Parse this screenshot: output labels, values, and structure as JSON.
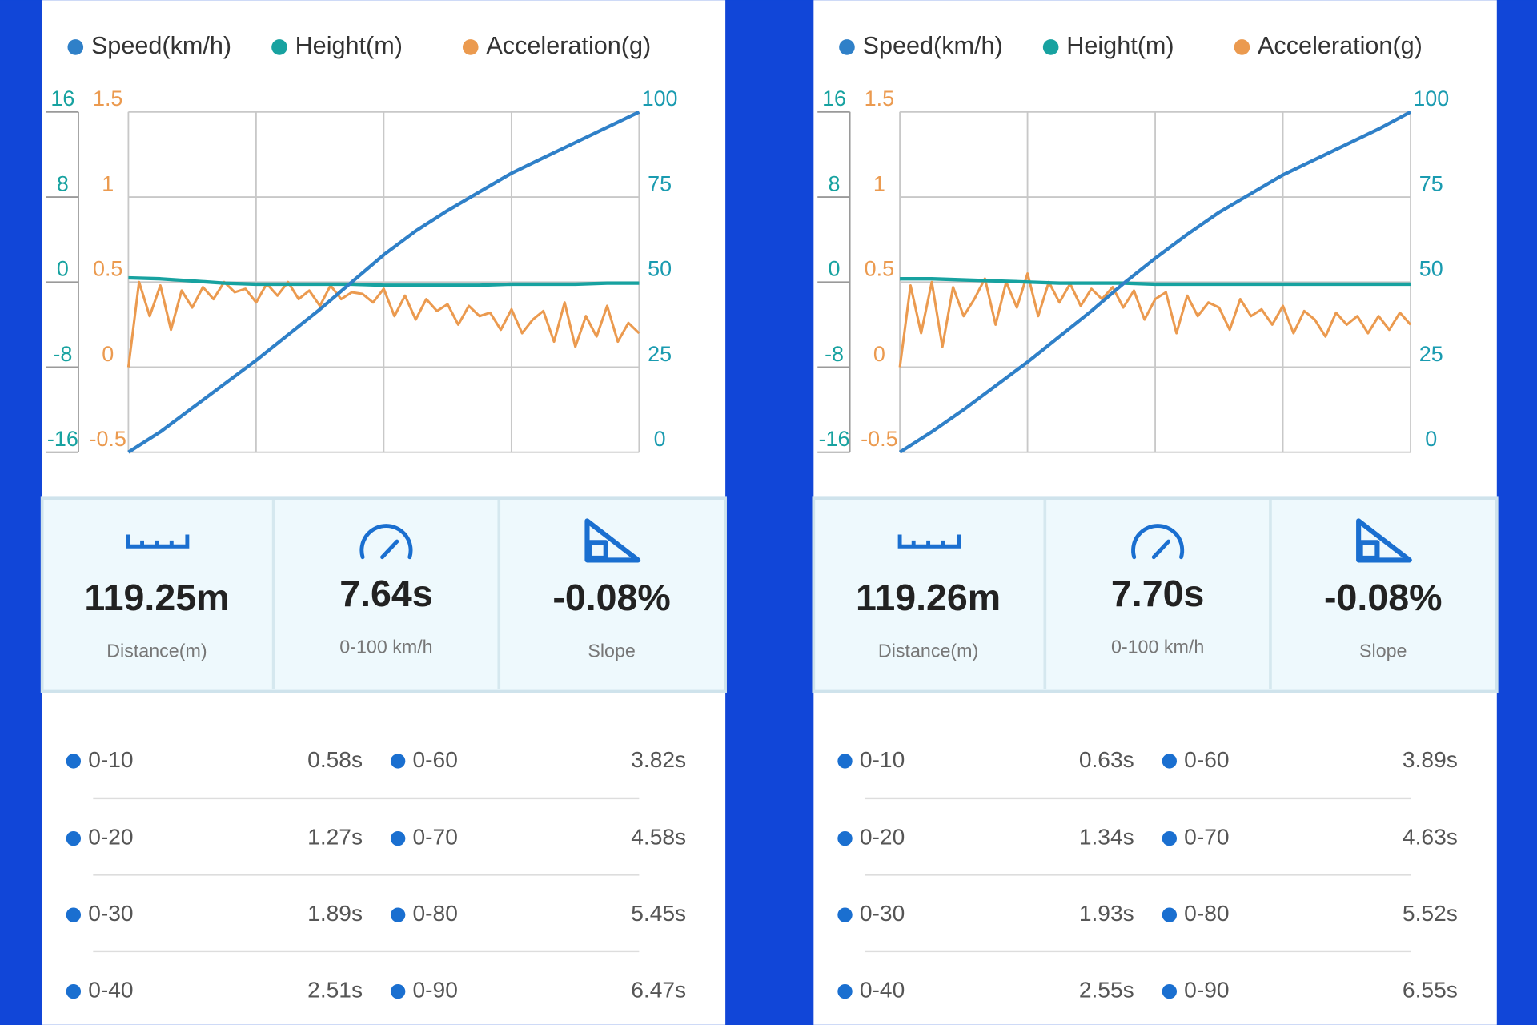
{
  "panels": [
    {
      "chart": {
        "type": "line",
        "ylim": [
          -16,
          16
        ],
        "yticks": [
          16,
          8,
          0,
          -8,
          -16
        ],
        "y3lim": [
          -0.5,
          1.5
        ],
        "y3ticks": [
          1.5,
          1,
          0.5,
          0,
          -0.5
        ],
        "y2lim": [
          0,
          100
        ],
        "y2ticks": [
          100,
          75,
          50,
          25,
          0
        ],
        "grid": true,
        "series": [
          {
            "name": "Speed(km/h)",
            "color": "#2f80c8",
            "axis": "y2",
            "values": [
              0,
              6,
              13,
              20,
              27,
              34.5,
              42,
              50,
              58,
              65,
              71,
              76.5,
              82,
              86.5,
              91,
              95.5,
              100
            ]
          },
          {
            "name": "Height(m)",
            "color": "#17a2a0",
            "axis": "y",
            "values": [
              0.4,
              0.3,
              0.1,
              -0.1,
              -0.2,
              -0.2,
              -0.2,
              -0.2,
              -0.3,
              -0.3,
              -0.3,
              -0.3,
              -0.2,
              -0.2,
              -0.2,
              -0.1,
              -0.1
            ]
          },
          {
            "name": "Acceleration(g)",
            "color": "#eb9a4f",
            "axis": "y3",
            "values": [
              0,
              0.5,
              0.3,
              0.48,
              0.22,
              0.45,
              0.35,
              0.47,
              0.4,
              0.5,
              0.44,
              0.46,
              0.38,
              0.49,
              0.42,
              0.5,
              0.4,
              0.45,
              0.36,
              0.48,
              0.4,
              0.44,
              0.43,
              0.38,
              0.46,
              0.3,
              0.42,
              0.28,
              0.4,
              0.33,
              0.37,
              0.25,
              0.36,
              0.3,
              0.32,
              0.22,
              0.34,
              0.2,
              0.28,
              0.33,
              0.15,
              0.38,
              0.12,
              0.3,
              0.18,
              0.36,
              0.15,
              0.26,
              0.2
            ]
          }
        ]
      },
      "stats": [
        {
          "value": "119.25m",
          "label": "Distance(m)"
        },
        {
          "value": "7.64s",
          "label": "0-100 km/h"
        },
        {
          "value": "-0.08%",
          "label": "Slope"
        }
      ],
      "splits": [
        {
          "label": "0-10",
          "time": "0.58s"
        },
        {
          "label": "0-20",
          "time": "1.27s"
        },
        {
          "label": "0-30",
          "time": "1.89s"
        },
        {
          "label": "0-40",
          "time": "2.51s"
        },
        {
          "label": "0-60",
          "time": "3.82s"
        },
        {
          "label": "0-70",
          "time": "4.58s"
        },
        {
          "label": "0-80",
          "time": "5.45s"
        },
        {
          "label": "0-90",
          "time": "6.47s"
        }
      ]
    },
    {
      "chart": {
        "type": "line",
        "ylim": [
          -16,
          16
        ],
        "yticks": [
          16,
          8,
          0,
          -8,
          -16
        ],
        "y3lim": [
          -0.5,
          1.5
        ],
        "y3ticks": [
          1.5,
          1,
          0.5,
          0,
          -0.5
        ],
        "y2lim": [
          0,
          100
        ],
        "y2ticks": [
          100,
          75,
          50,
          25,
          0
        ],
        "grid": true,
        "series": [
          {
            "name": "Speed(km/h)",
            "color": "#2f80c8",
            "axis": "y2",
            "values": [
              0,
              6,
              12.5,
              19.5,
              26.5,
              34,
              41.5,
              49.5,
              57,
              64,
              70.5,
              76,
              81.5,
              86,
              90.5,
              95,
              100
            ]
          },
          {
            "name": "Height(m)",
            "color": "#17a2a0",
            "axis": "y",
            "values": [
              0.3,
              0.3,
              0.2,
              0.1,
              0,
              -0.1,
              -0.1,
              -0.1,
              -0.2,
              -0.2,
              -0.2,
              -0.2,
              -0.2,
              -0.2,
              -0.2,
              -0.2,
              -0.2
            ]
          },
          {
            "name": "Acceleration(g)",
            "color": "#eb9a4f",
            "axis": "y3",
            "values": [
              0,
              0.48,
              0.2,
              0.5,
              0.12,
              0.47,
              0.3,
              0.4,
              0.52,
              0.25,
              0.5,
              0.35,
              0.55,
              0.3,
              0.5,
              0.38,
              0.49,
              0.36,
              0.46,
              0.4,
              0.47,
              0.35,
              0.45,
              0.28,
              0.4,
              0.44,
              0.2,
              0.42,
              0.3,
              0.38,
              0.35,
              0.22,
              0.4,
              0.3,
              0.34,
              0.25,
              0.36,
              0.2,
              0.33,
              0.28,
              0.18,
              0.32,
              0.25,
              0.3,
              0.2,
              0.3,
              0.22,
              0.32,
              0.25
            ]
          }
        ]
      },
      "stats": [
        {
          "value": "119.26m",
          "label": "Distance(m)"
        },
        {
          "value": "7.70s",
          "label": "0-100 km/h"
        },
        {
          "value": "-0.08%",
          "label": "Slope"
        }
      ],
      "splits": [
        {
          "label": "0-10",
          "time": "0.63s"
        },
        {
          "label": "0-20",
          "time": "1.34s"
        },
        {
          "label": "0-30",
          "time": "1.93s"
        },
        {
          "label": "0-40",
          "time": "2.55s"
        },
        {
          "label": "0-60",
          "time": "3.89s"
        },
        {
          "label": "0-70",
          "time": "4.63s"
        },
        {
          "label": "0-80",
          "time": "5.52s"
        },
        {
          "label": "0-90",
          "time": "6.55s"
        }
      ]
    }
  ]
}
